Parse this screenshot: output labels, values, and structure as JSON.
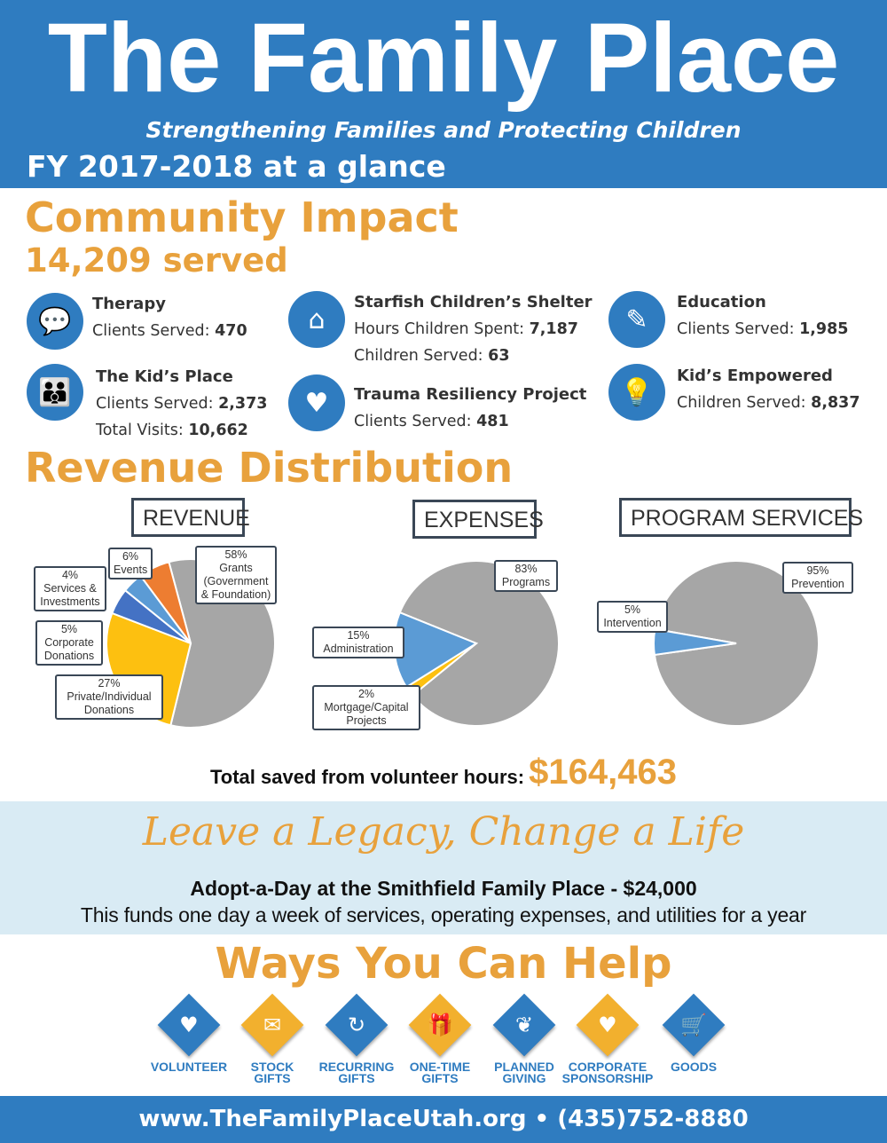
{
  "header": {
    "title": "The Family Place",
    "subtitle": "Strengthening Families and Protecting Children",
    "fy": "FY 2017-2018 at a glance"
  },
  "impact": {
    "heading": "Community Impact",
    "served": "14,209 served",
    "programs": [
      {
        "name": "Therapy",
        "icon": "speech-bubble-icon",
        "lines": [
          {
            "label": "Clients Served: ",
            "value": "470"
          }
        ]
      },
      {
        "name": "The Kid’s Place",
        "icon": "group-icon",
        "lines": [
          {
            "label": "Clients Served: ",
            "value": "2,373"
          },
          {
            "label": "Total Visits: ",
            "value": "10,662"
          }
        ]
      },
      {
        "name": "Starfish Children’s Shelter",
        "icon": "house-icon",
        "lines": [
          {
            "label": "Hours Children Spent: ",
            "value": "7,187"
          },
          {
            "label": "Children Served: ",
            "value": "63"
          }
        ]
      },
      {
        "name": "Trauma Resiliency Project",
        "icon": "heart-icon",
        "lines": [
          {
            "label": "Clients Served: ",
            "value": "481"
          }
        ]
      },
      {
        "name": "Education",
        "icon": "pencil-icon",
        "lines": [
          {
            "label": "Clients Served: ",
            "value": "1,985"
          }
        ]
      },
      {
        "name": "Kid’s Empowered",
        "icon": "lightbulb-icon",
        "lines": [
          {
            "label": "Children Served: ",
            "value": "8,837"
          }
        ]
      }
    ]
  },
  "revenue_heading": "Revenue Distribution",
  "chart_data": [
    {
      "type": "pie",
      "title": "REVENUE",
      "slices": [
        {
          "label": "Grants (Government & Foundation)",
          "pct": "58%",
          "value": 58,
          "color": "#a6a6a6"
        },
        {
          "label": "Private/Individual Donations",
          "pct": "27%",
          "value": 27,
          "color": "#fdc010"
        },
        {
          "label": "Corporate Donations",
          "pct": "5%",
          "value": 5,
          "color": "#4472c4"
        },
        {
          "label": "Services & Investments",
          "pct": "4%",
          "value": 4,
          "color": "#5b9bd5"
        },
        {
          "label": "Events",
          "pct": "6%",
          "value": 6,
          "color": "#ed7d31"
        }
      ]
    },
    {
      "type": "pie",
      "title": "EXPENSES",
      "slices": [
        {
          "label": "Programs",
          "pct": "83%",
          "value": 83,
          "color": "#a6a6a6"
        },
        {
          "label": "Mortgage/Capital Projects",
          "pct": "2%",
          "value": 2,
          "color": "#fdc010"
        },
        {
          "label": "Administration",
          "pct": "15%",
          "value": 15,
          "color": "#5b9bd5"
        }
      ]
    },
    {
      "type": "pie",
      "title": "PROGRAM SERVICES",
      "slices": [
        {
          "label": "Prevention",
          "pct": "95%",
          "value": 95,
          "color": "#a6a6a6"
        },
        {
          "label": "Intervention",
          "pct": "5%",
          "value": 5,
          "color": "#5b9bd5"
        }
      ]
    }
  ],
  "saved": {
    "label": "Total saved from volunteer hours:",
    "value": "$164,463"
  },
  "legacy": {
    "script": "Leave a Legacy, Change a Life",
    "adopt": "Adopt-a-Day at the Smithfield Family Place - $24,000",
    "funds": "This funds one day a week of services, operating expenses, and utilities for a year"
  },
  "help": {
    "heading": "Ways You Can Help",
    "items": [
      {
        "l1": "VOLUNTEER",
        "l2": "",
        "color": "#2f7cc0",
        "icon": "heart-hands-icon"
      },
      {
        "l1": "STOCK",
        "l2": "GIFTS",
        "color": "#f2b02e",
        "icon": "stock-envelope-icon"
      },
      {
        "l1": "RECURRING",
        "l2": "GIFTS",
        "color": "#2f7cc0",
        "icon": "recurring-gift-icon"
      },
      {
        "l1": "ONE-TIME",
        "l2": "GIFTS",
        "color": "#f2b02e",
        "icon": "gift-hand-icon"
      },
      {
        "l1": "PLANNED",
        "l2": "GIVING",
        "color": "#2f7cc0",
        "icon": "plant-hand-icon"
      },
      {
        "l1": "CORPORATE",
        "l2": "SPONSORSHIP",
        "color": "#f2b02e",
        "icon": "handshake-heart-icon"
      },
      {
        "l1": "GOODS",
        "l2": "",
        "color": "#2f7cc0",
        "icon": "shopping-cart-icon"
      }
    ]
  },
  "footer": "www.TheFamilyPlaceUtah.org • (435)752-8880"
}
